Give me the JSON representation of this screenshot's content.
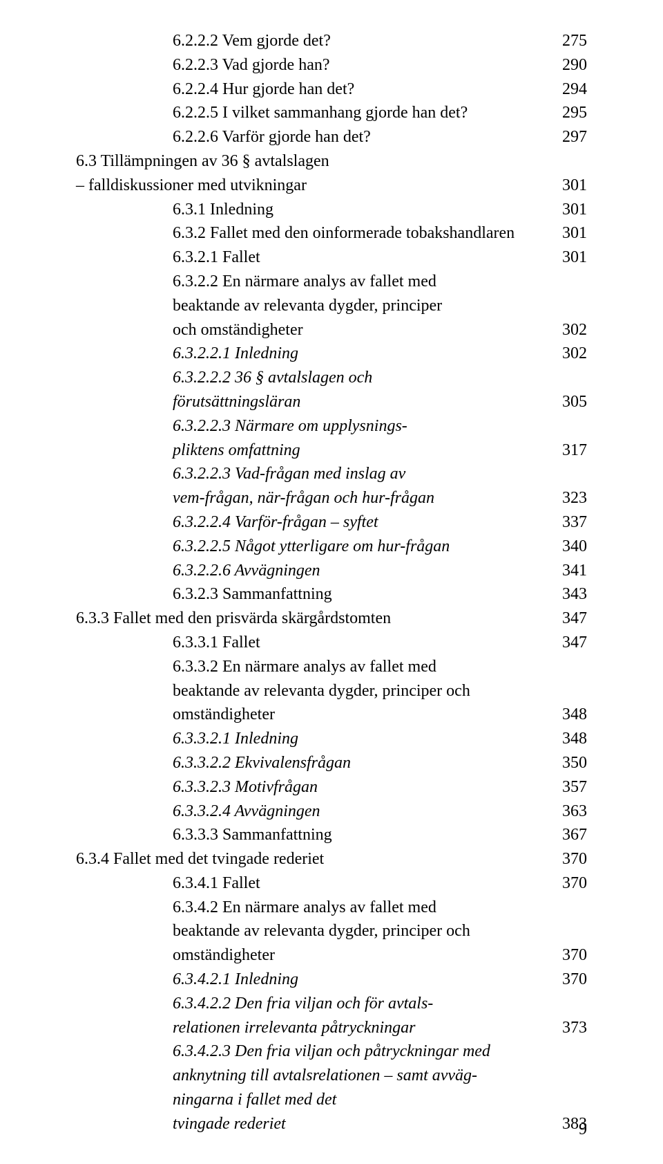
{
  "page_number": "9",
  "entries": [
    {
      "indent": "ind0",
      "italic": false,
      "lines": [
        "6.2.2.2 Vem gjorde det?"
      ],
      "page": "275"
    },
    {
      "indent": "ind0",
      "italic": false,
      "lines": [
        "6.2.2.3 Vad gjorde han?"
      ],
      "page": "290"
    },
    {
      "indent": "ind0",
      "italic": false,
      "lines": [
        "6.2.2.4 Hur gjorde han det?"
      ],
      "page": "294"
    },
    {
      "indent": "ind0",
      "italic": false,
      "lines": [
        "6.2.2.5 I vilket sammanhang gjorde han det?"
      ],
      "page": "295"
    },
    {
      "indent": "ind0",
      "italic": false,
      "lines": [
        "6.2.2.6 Varför gjorde han det?"
      ],
      "page": "297"
    },
    {
      "indent": "ind1",
      "italic": false,
      "lines": [
        "6.3 Tillämpningen av 36 § avtalslagen",
        "– falldiskussioner med utvikningar"
      ],
      "page": "301"
    },
    {
      "indent": "ind0",
      "italic": false,
      "lines": [
        "6.3.1 Inledning"
      ],
      "page": "301"
    },
    {
      "indent": "ind0",
      "italic": false,
      "lines": [
        "6.3.2 Fallet med den oinformerade tobakshandlaren"
      ],
      "page": "301"
    },
    {
      "indent": "ind2",
      "italic": false,
      "lines": [
        "6.3.2.1 Fallet"
      ],
      "page": "301"
    },
    {
      "indent": "ind2",
      "italic": false,
      "lines": [
        "6.3.2.2 En närmare analys av fallet med",
        "beaktande av relevanta dygder, principer",
        "och omständigheter"
      ],
      "page": "302"
    },
    {
      "indent": "ind2",
      "italic": true,
      "lines": [
        "6.3.2.2.1 Inledning"
      ],
      "page": "302"
    },
    {
      "indent": "ind2",
      "italic": true,
      "lines": [
        "6.3.2.2.2 36 § avtalslagen och",
        "förutsättningsläran"
      ],
      "page": "305"
    },
    {
      "indent": "ind2",
      "italic": true,
      "lines": [
        "6.3.2.2.3 Närmare om upplysnings-",
        "pliktens omfattning"
      ],
      "page": "317"
    },
    {
      "indent": "ind2",
      "italic": true,
      "lines": [
        "6.3.2.2.3 Vad-frågan med inslag av",
        "vem-frågan, när-frågan och hur-frågan"
      ],
      "page": "323"
    },
    {
      "indent": "ind2",
      "italic": true,
      "lines": [
        "6.3.2.2.4 Varför-frågan – syftet"
      ],
      "page": "337"
    },
    {
      "indent": "ind2",
      "italic": true,
      "lines": [
        "6.3.2.2.5 Något ytterligare om hur-frågan"
      ],
      "page": "340"
    },
    {
      "indent": "ind2",
      "italic": true,
      "lines": [
        "6.3.2.2.6 Avvägningen"
      ],
      "page": "341"
    },
    {
      "indent": "ind2",
      "italic": false,
      "lines": [
        "6.3.2.3 Sammanfattning"
      ],
      "page": "343"
    },
    {
      "indent": "ind1",
      "italic": false,
      "lines": [
        "6.3.3 Fallet med den prisvärda skärgårdstomten"
      ],
      "page": "347"
    },
    {
      "indent": "ind2",
      "italic": false,
      "lines": [
        "6.3.3.1 Fallet"
      ],
      "page": "347"
    },
    {
      "indent": "ind2",
      "italic": false,
      "lines": [
        "6.3.3.2 En närmare analys av fallet med",
        "beaktande av relevanta dygder, principer och",
        "omständigheter"
      ],
      "page": "348"
    },
    {
      "indent": "ind2",
      "italic": true,
      "lines": [
        "6.3.3.2.1 Inledning"
      ],
      "page": "348"
    },
    {
      "indent": "ind2",
      "italic": true,
      "lines": [
        "6.3.3.2.2 Ekvivalensfrågan"
      ],
      "page": "350"
    },
    {
      "indent": "ind2",
      "italic": true,
      "lines": [
        "6.3.3.2.3 Motivfrågan"
      ],
      "page": "357"
    },
    {
      "indent": "ind2",
      "italic": true,
      "lines": [
        "6.3.3.2.4 Avvägningen"
      ],
      "page": "363"
    },
    {
      "indent": "ind2",
      "italic": false,
      "lines": [
        "6.3.3.3 Sammanfattning"
      ],
      "page": "367"
    },
    {
      "indent": "ind1",
      "italic": false,
      "lines": [
        "6.3.4 Fallet med det tvingade rederiet"
      ],
      "page": "370"
    },
    {
      "indent": "ind2",
      "italic": false,
      "lines": [
        "6.3.4.1 Fallet"
      ],
      "page": "370"
    },
    {
      "indent": "ind2",
      "italic": false,
      "lines": [
        "6.3.4.2 En närmare analys av fallet med",
        "beaktande av relevanta dygder, principer och",
        "omständigheter"
      ],
      "page": "370"
    },
    {
      "indent": "ind2",
      "italic": true,
      "lines": [
        "6.3.4.2.1 Inledning"
      ],
      "page": "370"
    },
    {
      "indent": "ind2",
      "italic": true,
      "lines": [
        "6.3.4.2.2 Den fria viljan och för avtals-",
        "relationen irrelevanta påtryckningar"
      ],
      "page": "373"
    },
    {
      "indent": "ind2",
      "italic": true,
      "lines": [
        "6.3.4.2.3 Den fria viljan och påtryckningar med",
        "anknytning till avtalsrelationen – samt avväg-",
        "ningarna i fallet med det",
        "tvingade rederiet"
      ],
      "page": "383"
    }
  ]
}
